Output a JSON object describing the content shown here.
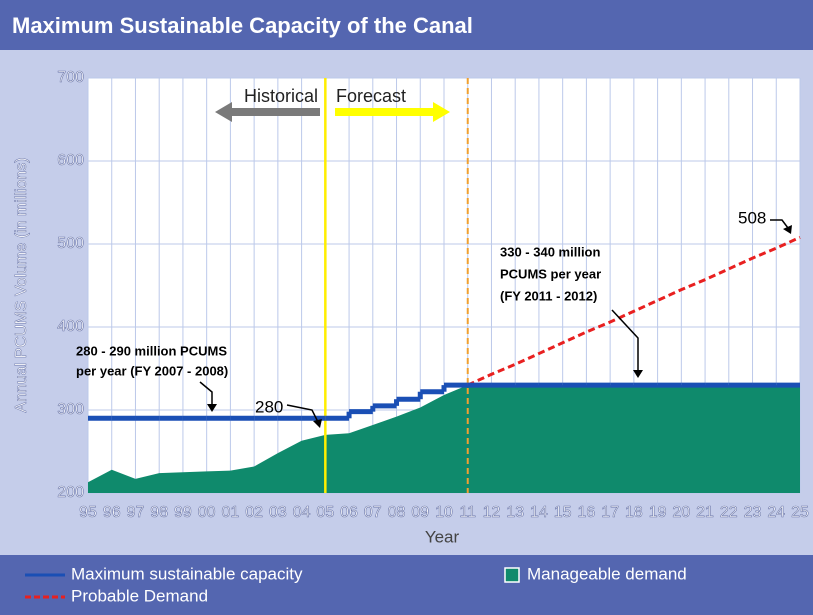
{
  "chart_data": {
    "type": "line",
    "title": "Maximum Sustainable Capacity of the Canal",
    "y_label": "Annual PCUMS Volume (in millions)",
    "x_label": "Year",
    "categories": [
      "95",
      "96",
      "97",
      "98",
      "99",
      "00",
      "01",
      "02",
      "03",
      "04",
      "05",
      "06",
      "07",
      "08",
      "09",
      "10",
      "11",
      "12",
      "13",
      "14",
      "15",
      "16",
      "17",
      "18",
      "19",
      "20",
      "21",
      "22",
      "23",
      "24",
      "25"
    ],
    "ylim": [
      200,
      700
    ],
    "yticks": [
      200,
      300,
      400,
      500,
      600,
      700
    ],
    "grid": true,
    "series": [
      {
        "name": "Manageable demand",
        "color": "#0f8a6c",
        "fill": true,
        "values": [
          213,
          228,
          217,
          224,
          225,
          226,
          227,
          232,
          248,
          263,
          270,
          272,
          282,
          292,
          303,
          318,
          330,
          330,
          330,
          330,
          330,
          330,
          330,
          330,
          330,
          330,
          330,
          330,
          330,
          330,
          330
        ]
      },
      {
        "name": "Probable Demand",
        "color": "#e82020",
        "dash": true,
        "values": [
          null,
          null,
          null,
          null,
          null,
          null,
          null,
          null,
          null,
          null,
          null,
          null,
          null,
          null,
          null,
          null,
          330,
          343,
          355,
          368,
          381,
          394,
          406,
          419,
          432,
          445,
          457,
          470,
          483,
          495,
          508
        ]
      },
      {
        "name": "Maximum sustainable capacity",
        "color": "#1a4fb5",
        "step": true,
        "values": [
          290,
          290,
          290,
          290,
          290,
          290,
          290,
          290,
          290,
          290,
          290,
          298,
          305,
          313,
          322,
          330,
          330,
          330,
          330,
          330,
          330,
          330,
          330,
          330,
          330,
          330,
          330,
          330,
          330,
          330,
          330
        ]
      }
    ],
    "markers": [
      {
        "x": "05",
        "color": "#ffee00"
      },
      {
        "x": "11",
        "color": "#f0a030",
        "dash": true
      }
    ],
    "annotations": {
      "historical": "Historical",
      "forecast": "Forecast",
      "note_2007": [
        "280 - 290 million PCUMS",
        "per year (FY 2007 - 2008)"
      ],
      "label_280": "280",
      "note_2011": [
        "330 - 340 million",
        "PCUMS per year",
        "(FY 2011 - 2012)"
      ],
      "label_508": "508"
    }
  }
}
